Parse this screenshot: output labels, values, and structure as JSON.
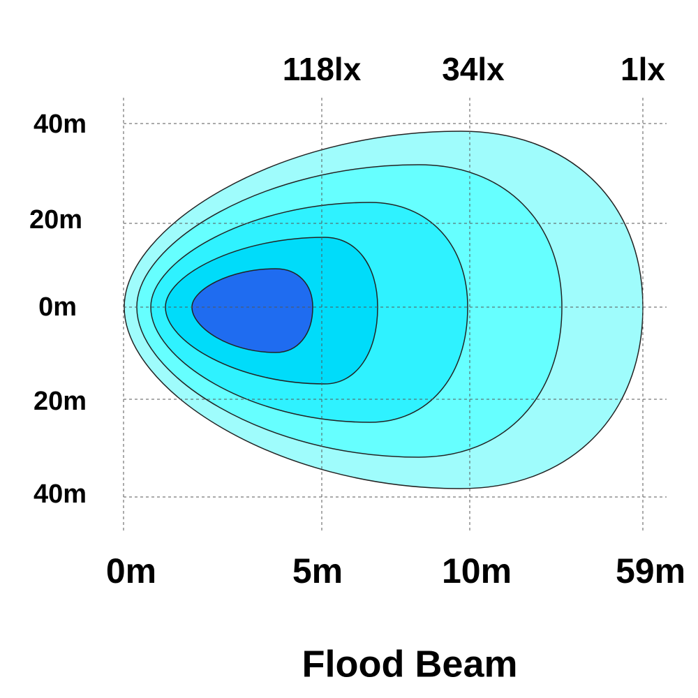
{
  "title": "Flood Beam",
  "lux_labels": [
    "118lx",
    "34lx",
    "1lx"
  ],
  "x_labels": [
    "0m",
    "5m",
    "10m",
    "59m"
  ],
  "y_labels": [
    "40m",
    "20m",
    "0m",
    "20m",
    "40m"
  ]
}
